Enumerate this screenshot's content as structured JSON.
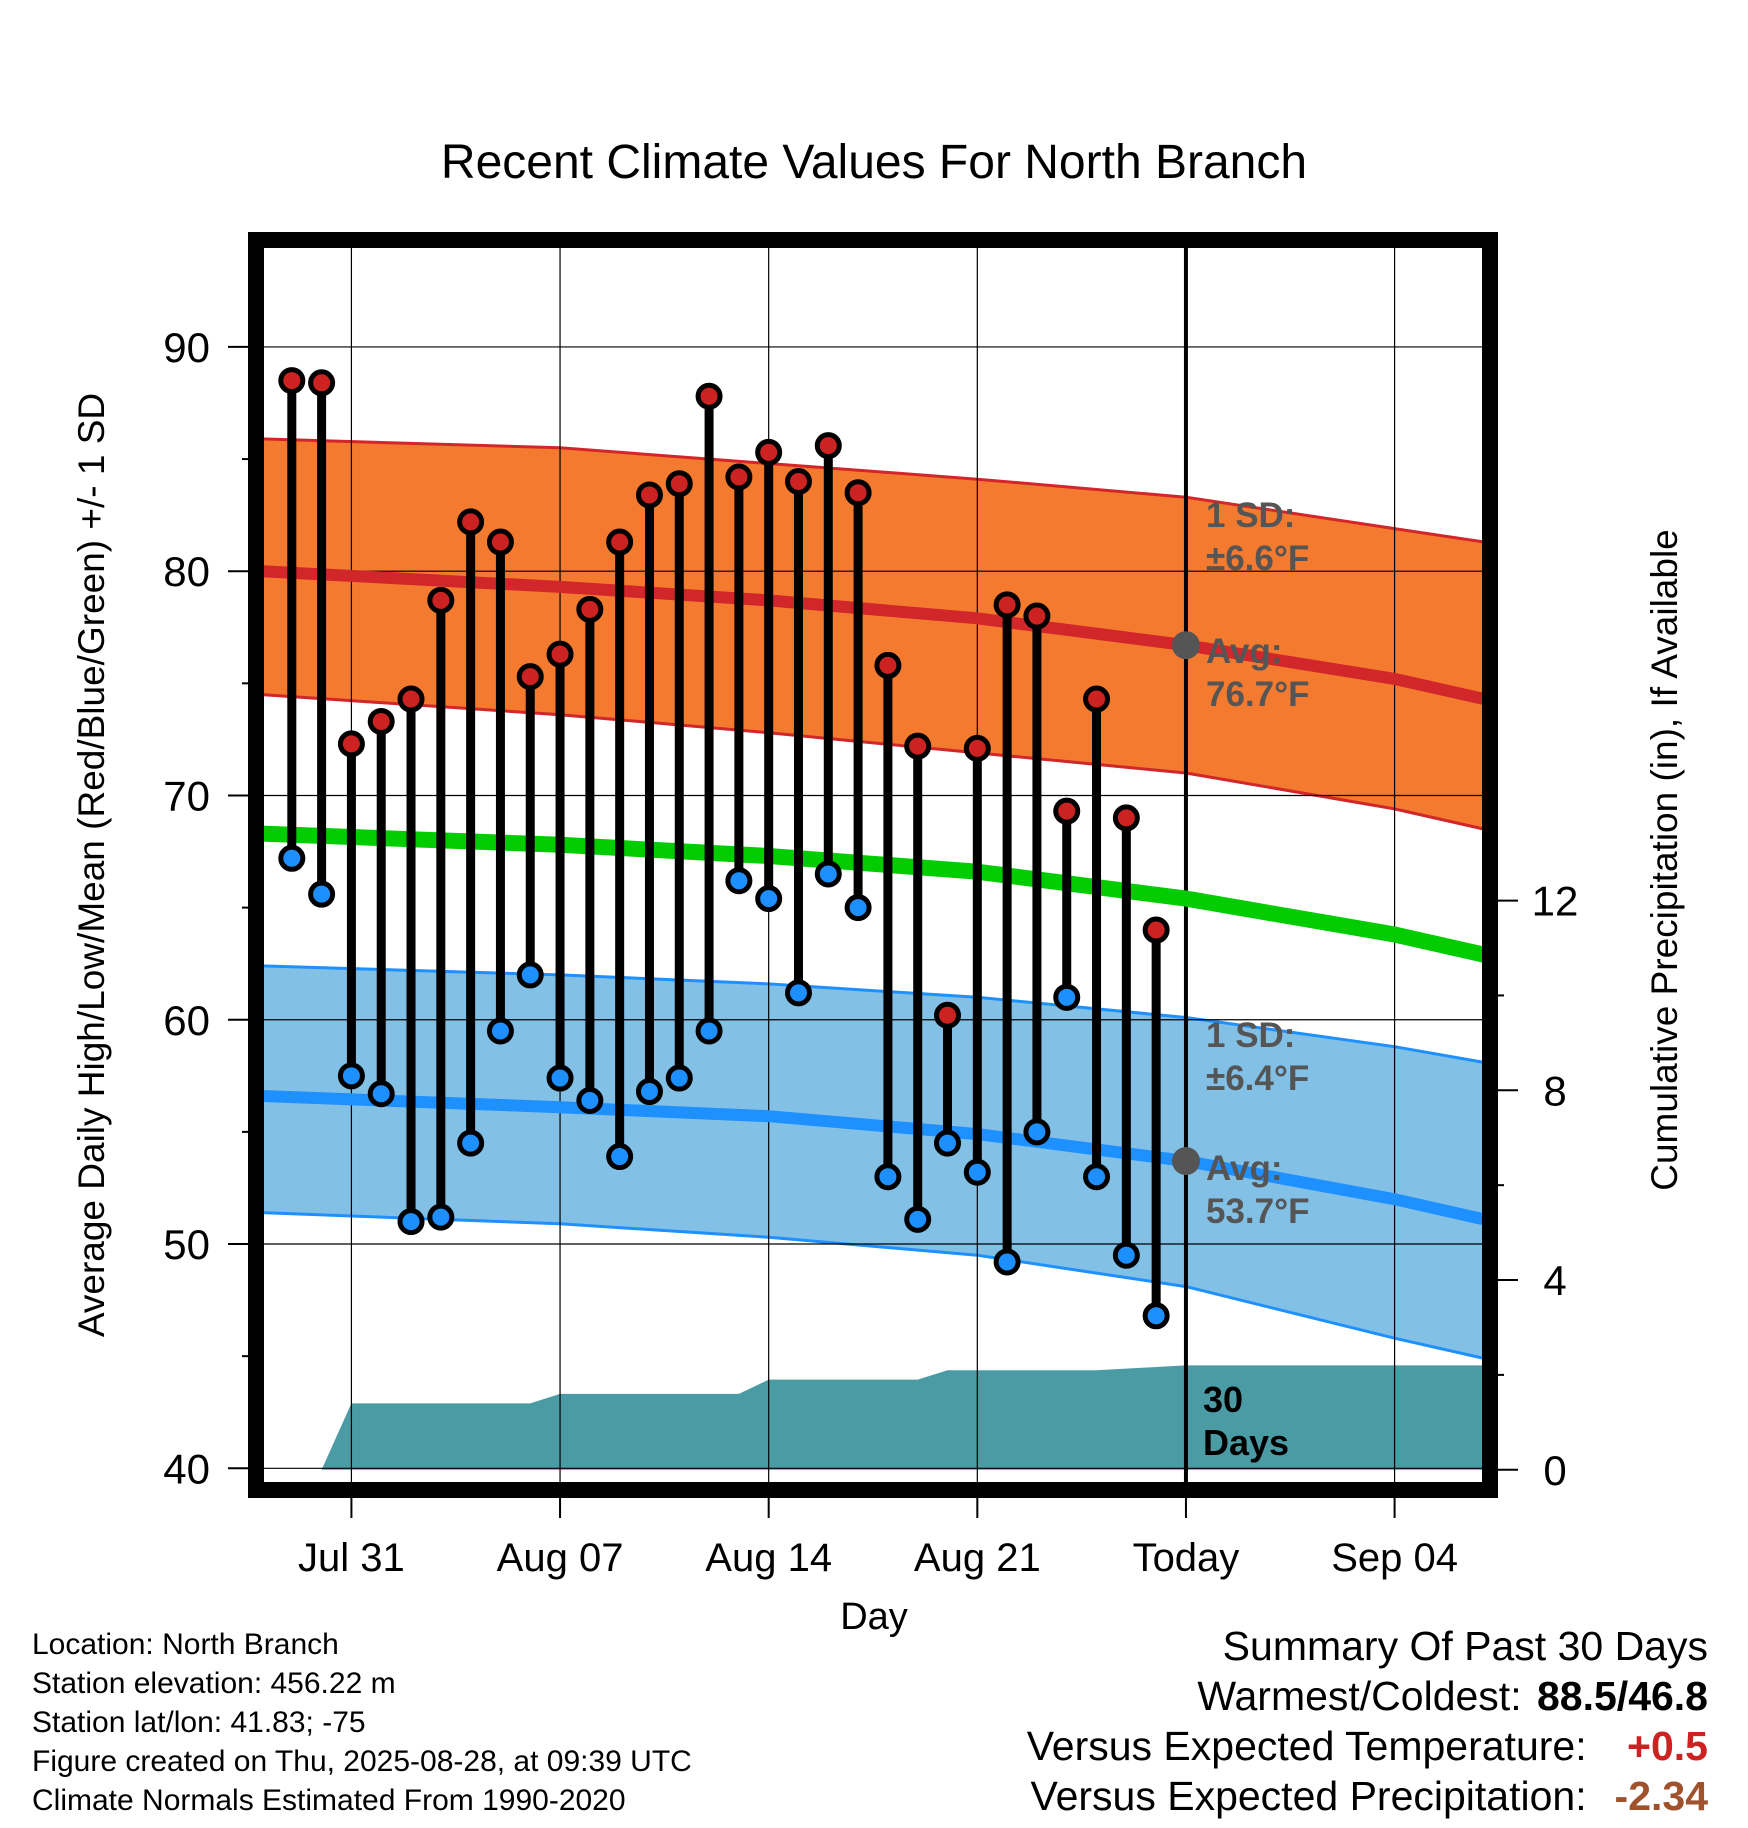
{
  "title": "Recent Climate Values For North Branch",
  "xlabel": "Day",
  "ylabel_left": "Average Daily High/Low/Mean (Red/Blue/Green) +/- 1 SD",
  "ylabel_right": "Cumulative Precipitation (in), If Available",
  "colors": {
    "high_band": "#f47a2f",
    "high_line": "#d1262a",
    "low_band": "#82c0e6",
    "low_line": "#1e90ff",
    "mean_line": "#00cc00",
    "precip_fill": "#4a9ba3",
    "high_marker": "#cc2222",
    "low_marker": "#1e8fff",
    "annot": "#555555",
    "warm_value": "#cc2222",
    "precip_value": "#a0522d"
  },
  "chart_data": {
    "type": "line",
    "x_tick_labels": [
      "Jul 31",
      "Aug 07",
      "Aug 14",
      "Aug 21",
      "Today",
      "Sep 04"
    ],
    "x_tick_dates": [
      "2025-07-31",
      "2025-08-07",
      "2025-08-14",
      "2025-08-21",
      "2025-08-28",
      "2025-09-04"
    ],
    "x_range": [
      "2025-07-28",
      "2025-09-07"
    ],
    "y_left_ticks": [
      40,
      50,
      60,
      70,
      80,
      90
    ],
    "y_left_range": [
      39.3,
      94.5
    ],
    "y_right_ticks": [
      0,
      4,
      8,
      12
    ],
    "y_right_range": [
      -0.3,
      25.8
    ],
    "daily_observations": {
      "dates": [
        "2025-07-29",
        "2025-07-30",
        "2025-07-31",
        "2025-08-01",
        "2025-08-02",
        "2025-08-03",
        "2025-08-04",
        "2025-08-05",
        "2025-08-06",
        "2025-08-07",
        "2025-08-08",
        "2025-08-09",
        "2025-08-10",
        "2025-08-11",
        "2025-08-12",
        "2025-08-13",
        "2025-08-14",
        "2025-08-15",
        "2025-08-16",
        "2025-08-17",
        "2025-08-18",
        "2025-08-19",
        "2025-08-20",
        "2025-08-21",
        "2025-08-22",
        "2025-08-23",
        "2025-08-24",
        "2025-08-25",
        "2025-08-26",
        "2025-08-27"
      ],
      "high": [
        88.5,
        88.4,
        72.3,
        73.3,
        74.3,
        78.7,
        82.2,
        81.3,
        75.3,
        76.3,
        78.3,
        81.3,
        83.4,
        83.9,
        87.8,
        84.2,
        85.3,
        84.0,
        85.6,
        83.5,
        75.8,
        72.2,
        60.2,
        72.1,
        78.5,
        78.0,
        69.3,
        74.3,
        69.0,
        64.0
      ],
      "low": [
        67.2,
        65.6,
        57.5,
        56.7,
        51.0,
        51.2,
        54.5,
        59.5,
        62.0,
        57.4,
        56.4,
        53.9,
        56.8,
        57.4,
        59.5,
        66.2,
        65.4,
        61.2,
        66.5,
        65.0,
        53.0,
        51.1,
        54.5,
        53.2,
        49.2,
        55.0,
        61.0,
        53.0,
        49.5,
        46.8
      ]
    },
    "normals": {
      "dates": [
        "2025-07-28",
        "2025-08-07",
        "2025-08-14",
        "2025-08-21",
        "2025-08-28",
        "2025-09-04",
        "2025-09-07"
      ],
      "high_mean": [
        80.0,
        79.3,
        78.7,
        77.9,
        76.7,
        75.2,
        74.3
      ],
      "high_upper": [
        85.9,
        85.5,
        84.8,
        84.1,
        83.3,
        81.9,
        81.3
      ],
      "high_lower": [
        74.5,
        73.6,
        72.8,
        71.9,
        71.0,
        69.4,
        68.5
      ],
      "mean": [
        68.3,
        67.8,
        67.3,
        66.6,
        65.4,
        63.8,
        62.9
      ],
      "low_mean": [
        56.6,
        56.1,
        55.7,
        54.9,
        53.7,
        52.0,
        51.1
      ],
      "low_upper": [
        62.4,
        62.0,
        61.6,
        61.0,
        60.1,
        58.8,
        58.1
      ],
      "low_lower": [
        51.4,
        50.9,
        50.3,
        49.5,
        48.1,
        45.8,
        44.9
      ]
    },
    "cumulative_precip": {
      "dates": [
        "2025-07-30",
        "2025-07-31",
        "2025-08-06",
        "2025-08-07",
        "2025-08-13",
        "2025-08-14",
        "2025-08-19",
        "2025-08-20",
        "2025-08-25",
        "2025-08-28",
        "2025-09-07"
      ],
      "values": [
        0.0,
        1.4,
        1.4,
        1.6,
        1.6,
        1.9,
        1.9,
        2.1,
        2.1,
        2.2,
        2.2
      ]
    },
    "annotations": {
      "high_sd": "1 SD:",
      "high_sd_value": "±6.6°F",
      "high_avg": "Avg:",
      "high_avg_value": "76.7°F",
      "low_sd": "1 SD:",
      "low_sd_value": "±6.4°F",
      "low_avg": "Avg:",
      "low_avg_value": "53.7°F",
      "precip_period_1": "30",
      "precip_period_2": "Days"
    }
  },
  "footer_left": {
    "location": "Location: North Branch",
    "elevation": "Station elevation: 456.22 m",
    "latlon": "Station lat/lon: 41.83; -75",
    "created": "Figure created on Thu, 2025-08-28, at 09:39 UTC",
    "normals": "Climate Normals Estimated From 1990-2020"
  },
  "summary": {
    "heading": "Summary Of Past 30 Days",
    "warm_cold_label": "Warmest/Coldest:",
    "warm_value": "88.5",
    "slash": "/",
    "cold_value": "46.8",
    "temp_label": "Versus Expected Temperature:",
    "temp_value": "+0.5",
    "precip_label": "Versus Expected Precipitation:",
    "precip_value": "-2.34"
  }
}
